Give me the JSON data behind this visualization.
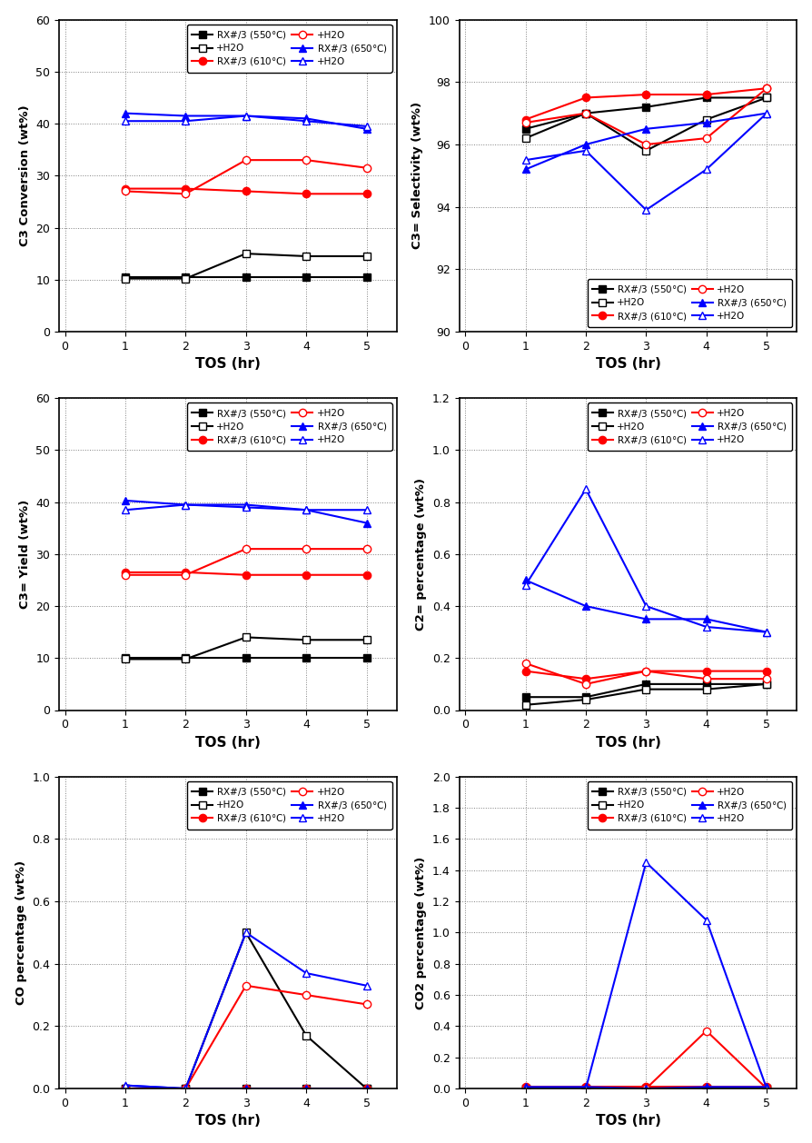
{
  "tos": [
    1,
    2,
    3,
    4,
    5
  ],
  "subplot1": {
    "ylabel": "C3 Conversion (wt%)",
    "ylim": [
      0,
      60
    ],
    "yticks": [
      0,
      10,
      20,
      30,
      40,
      50,
      60
    ],
    "legend_loc": "upper right",
    "series": {
      "s550_solid": [
        10.5,
        10.5,
        10.5,
        10.5,
        10.5
      ],
      "s550_open": [
        10.2,
        10.2,
        15.0,
        14.5,
        14.5
      ],
      "s610_solid": [
        27.5,
        27.5,
        27.0,
        26.5,
        26.5
      ],
      "s610_open": [
        27.0,
        26.5,
        33.0,
        33.0,
        31.5
      ],
      "s650_solid": [
        42.0,
        41.5,
        41.5,
        41.0,
        39.0
      ],
      "s650_open": [
        40.5,
        40.5,
        41.5,
        40.5,
        39.5
      ]
    }
  },
  "subplot2": {
    "ylabel": "C3= Selectivity (wt%)",
    "ylim": [
      90,
      100
    ],
    "yticks": [
      90,
      92,
      94,
      96,
      98,
      100
    ],
    "legend_loc": "lower right",
    "series": {
      "s550_solid": [
        96.5,
        97.0,
        97.2,
        97.5,
        97.5
      ],
      "s550_open": [
        96.2,
        97.0,
        95.8,
        96.8,
        97.5
      ],
      "s610_solid": [
        96.8,
        97.5,
        97.6,
        97.6,
        97.8
      ],
      "s610_open": [
        96.7,
        97.0,
        96.0,
        96.2,
        97.8
      ],
      "s650_solid": [
        95.2,
        96.0,
        96.5,
        96.7,
        97.0
      ],
      "s650_open": [
        95.5,
        95.8,
        93.9,
        95.2,
        97.0
      ]
    }
  },
  "subplot3": {
    "ylabel": "C3= Yield (wt%)",
    "ylim": [
      0,
      60
    ],
    "yticks": [
      0,
      10,
      20,
      30,
      40,
      50,
      60
    ],
    "legend_loc": "upper right",
    "series": {
      "s550_solid": [
        10.0,
        10.0,
        10.0,
        10.0,
        10.0
      ],
      "s550_open": [
        9.8,
        9.8,
        14.0,
        13.5,
        13.5
      ],
      "s610_solid": [
        26.5,
        26.5,
        26.0,
        26.0,
        26.0
      ],
      "s610_open": [
        26.0,
        26.0,
        31.0,
        31.0,
        31.0
      ],
      "s650_solid": [
        40.3,
        39.5,
        39.5,
        38.5,
        36.0
      ],
      "s650_open": [
        38.5,
        39.5,
        39.0,
        38.5,
        38.5
      ]
    }
  },
  "subplot4": {
    "ylabel": "C2= percentage (wt%)",
    "ylim": [
      0,
      1.2
    ],
    "yticks": [
      0.0,
      0.2,
      0.4,
      0.6,
      0.8,
      1.0,
      1.2
    ],
    "legend_loc": "upper right",
    "series": {
      "s550_solid": [
        0.05,
        0.05,
        0.1,
        0.1,
        0.1
      ],
      "s550_open": [
        0.02,
        0.04,
        0.08,
        0.08,
        0.1
      ],
      "s610_solid": [
        0.15,
        0.12,
        0.15,
        0.15,
        0.15
      ],
      "s610_open": [
        0.18,
        0.1,
        0.15,
        0.12,
        0.12
      ],
      "s650_solid": [
        0.5,
        0.4,
        0.35,
        0.35,
        0.3
      ],
      "s650_open": [
        0.48,
        0.85,
        0.4,
        0.32,
        0.3
      ]
    }
  },
  "subplot5": {
    "ylabel": "CO percentage (wt%)",
    "ylim": [
      0,
      1.0
    ],
    "yticks": [
      0.0,
      0.2,
      0.4,
      0.6,
      0.8,
      1.0
    ],
    "legend_loc": "upper right",
    "series": {
      "s550_solid": [
        0.0,
        0.0,
        0.0,
        0.0,
        0.0
      ],
      "s550_open": [
        0.0,
        0.0,
        0.5,
        0.17,
        0.0
      ],
      "s610_solid": [
        0.0,
        0.0,
        0.0,
        0.0,
        0.0
      ],
      "s610_open": [
        0.0,
        0.0,
        0.33,
        0.3,
        0.27
      ],
      "s650_solid": [
        0.01,
        0.0,
        0.0,
        0.0,
        0.0
      ],
      "s650_open": [
        0.01,
        0.0,
        0.5,
        0.37,
        0.33
      ]
    }
  },
  "subplot6": {
    "ylabel": "CO2 percentage (wt%)",
    "ylim": [
      0,
      2.0
    ],
    "yticks": [
      0.0,
      0.2,
      0.4,
      0.6,
      0.8,
      1.0,
      1.2,
      1.4,
      1.6,
      1.8,
      2.0
    ],
    "legend_loc": "upper right",
    "series": {
      "s550_solid": [
        0.0,
        0.0,
        0.0,
        0.0,
        0.0
      ],
      "s550_open": [
        0.0,
        0.0,
        0.0,
        0.0,
        0.0
      ],
      "s610_solid": [
        0.01,
        0.01,
        0.01,
        0.01,
        0.01
      ],
      "s610_open": [
        0.0,
        0.0,
        0.0,
        0.37,
        0.0
      ],
      "s650_solid": [
        0.01,
        0.01,
        0.0,
        0.01,
        0.01
      ],
      "s650_open": [
        0.0,
        0.0,
        1.45,
        1.08,
        0.0
      ]
    }
  },
  "xlabel": "TOS (hr)"
}
